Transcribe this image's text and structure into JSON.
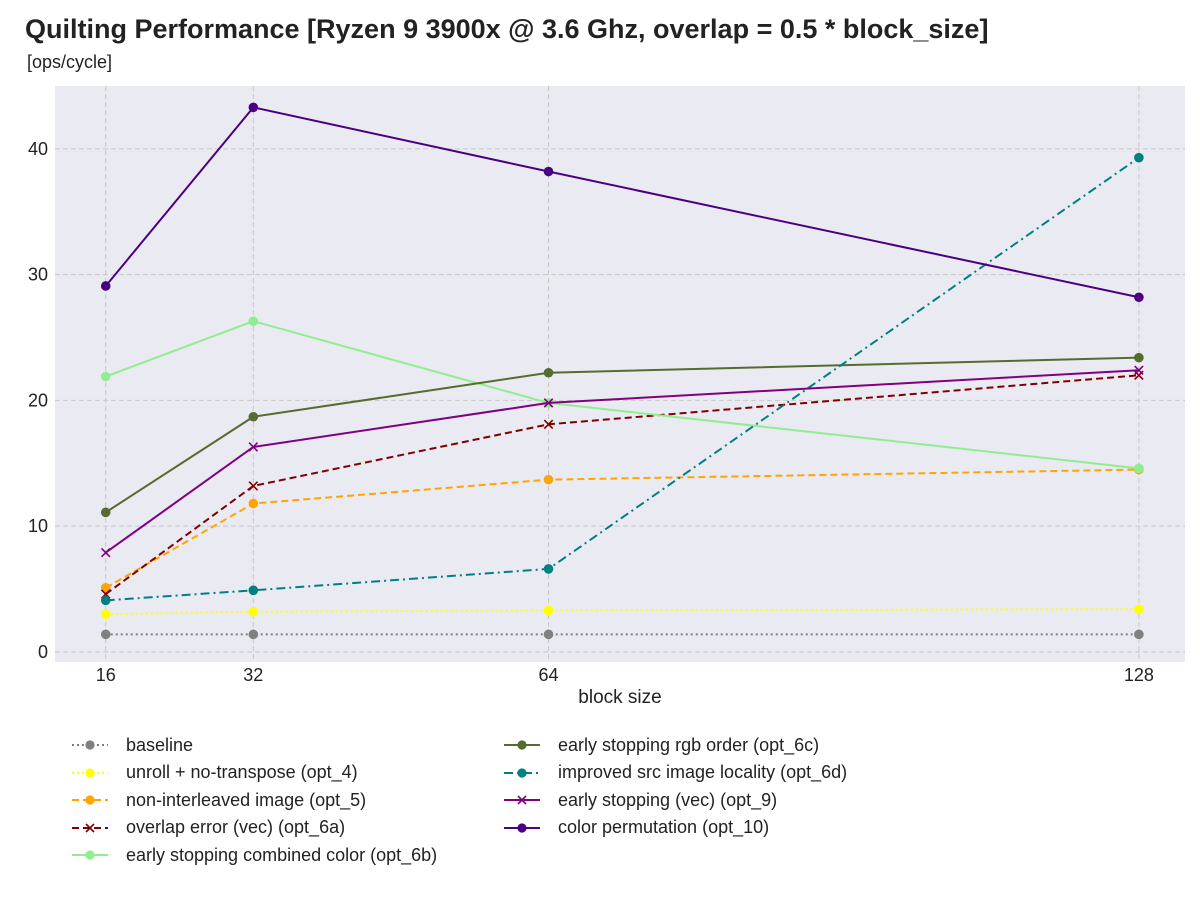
{
  "chart_data": {
    "type": "line",
    "title": "Quilting Performance [Ryzen 9 3900x @ 3.6 Ghz, overlap = 0.5 * block_size]",
    "subtitle": "[ops/cycle]",
    "xlabel": "block size",
    "ylabel": "",
    "x": [
      16,
      32,
      64,
      128
    ],
    "x_ticks": [
      "16",
      "32",
      "64",
      "128"
    ],
    "xlim": [
      10.5,
      133
    ],
    "ylim": [
      -0.8,
      45
    ],
    "y_ticks": [
      "0",
      "10",
      "20",
      "30",
      "40"
    ],
    "y_tick_values": [
      0,
      10,
      20,
      30,
      40
    ],
    "grid": true,
    "legend_position": "bottom",
    "series": [
      {
        "name": "baseline",
        "values": [
          1.4,
          1.4,
          1.4,
          1.4
        ],
        "color": "#808080",
        "dash": "dotted",
        "marker": "circle"
      },
      {
        "name": "unroll + no-transpose (opt_4)",
        "values": [
          3.0,
          3.2,
          3.3,
          3.4
        ],
        "color": "#ffff00",
        "dash": "dotted",
        "marker": "circle"
      },
      {
        "name": "non-interleaved image (opt_5)",
        "values": [
          5.1,
          11.8,
          13.7,
          14.5
        ],
        "color": "#ffa500",
        "dash": "dashed",
        "marker": "circle"
      },
      {
        "name": "overlap error (vec) (opt_6a)",
        "values": [
          4.6,
          13.2,
          18.1,
          22.0
        ],
        "color": "#800000",
        "dash": "dashed",
        "marker": "x"
      },
      {
        "name": "early stopping combined color (opt_6b)",
        "values": [
          21.9,
          26.3,
          19.8,
          14.6
        ],
        "color": "#90ee90",
        "dash": "solid",
        "marker": "circle"
      },
      {
        "name": "early stopping rgb order (opt_6c)",
        "values": [
          11.1,
          18.7,
          22.2,
          23.4
        ],
        "color": "#556b2f",
        "dash": "solid",
        "marker": "circle"
      },
      {
        "name": "improved src image locality (opt_6d)",
        "values": [
          4.1,
          4.9,
          6.6,
          39.3
        ],
        "color": "#008080",
        "dash": "dashdot",
        "marker": "circle"
      },
      {
        "name": "early stopping (vec) (opt_9)",
        "values": [
          7.9,
          16.3,
          19.8,
          22.4
        ],
        "color": "#800080",
        "dash": "solid",
        "marker": "x"
      },
      {
        "name": "color permutation (opt_10)",
        "values": [
          29.1,
          43.3,
          38.2,
          28.2
        ],
        "color": "#4b0082",
        "dash": "solid",
        "marker": "circle"
      }
    ]
  }
}
